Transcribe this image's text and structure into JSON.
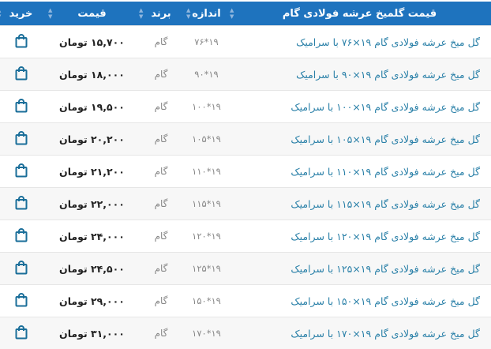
{
  "header": {
    "name": "قیمت گلمیخ عرشه فولادی گام",
    "size": "اندازه",
    "brand": "برند",
    "price": "قیمت",
    "buy": "خرید"
  },
  "colors": {
    "header_bg": "#1e73be",
    "link": "#2a80a8",
    "icon": "#1a6e99"
  },
  "rows": [
    {
      "name": "گل میخ عرشه فولادی گام ۱۹×۷۶ با سرامیک",
      "size": "۱۹*۷۶",
      "brand": "گام",
      "price": "۱۵,۷۰۰ تومان"
    },
    {
      "name": "گل میخ عرشه فولادی گام ۱۹×۹۰ با سرامیک",
      "size": "۱۹*۹۰",
      "brand": "گام",
      "price": "۱۸,۰۰۰ تومان"
    },
    {
      "name": "گل میخ عرشه فولادی گام ۱۹×۱۰۰ با سرامیک",
      "size": "۱۹*۱۰۰",
      "brand": "گام",
      "price": "۱۹,۵۰۰ تومان"
    },
    {
      "name": "گل میخ عرشه فولادی گام ۱۹×۱۰۵ با سرامیک",
      "size": "۱۹*۱۰۵",
      "brand": "گام",
      "price": "۲۰,۲۰۰ تومان"
    },
    {
      "name": "گل میخ عرشه فولادی گام ۱۹×۱۱۰ با سرامیک",
      "size": "۱۹*۱۱۰",
      "brand": "گام",
      "price": "۲۱,۲۰۰ تومان"
    },
    {
      "name": "گل میخ عرشه فولادی گام ۱۹×۱۱۵ با سرامیک",
      "size": "۱۹*۱۱۵",
      "brand": "گام",
      "price": "۲۲,۰۰۰ تومان"
    },
    {
      "name": "گل میخ عرشه فولادی گام ۱۹×۱۲۰ با سرامیک",
      "size": "۱۹*۱۲۰",
      "brand": "گام",
      "price": "۲۴,۰۰۰ تومان"
    },
    {
      "name": "گل میخ عرشه فولادی گام ۱۹×۱۲۵ با سرامیک",
      "size": "۱۹*۱۲۵",
      "brand": "گام",
      "price": "۲۴,۵۰۰ تومان"
    },
    {
      "name": "گل میخ عرشه فولادی گام ۱۹×۱۵۰ با سرامیک",
      "size": "۱۹*۱۵۰",
      "brand": "گام",
      "price": "۲۹,۰۰۰ تومان"
    },
    {
      "name": "گل میخ عرشه فولادی گام ۱۹×۱۷۰ با سرامیک",
      "size": "۱۹*۱۷۰",
      "brand": "گام",
      "price": "۳۱,۰۰۰ تومان"
    }
  ]
}
